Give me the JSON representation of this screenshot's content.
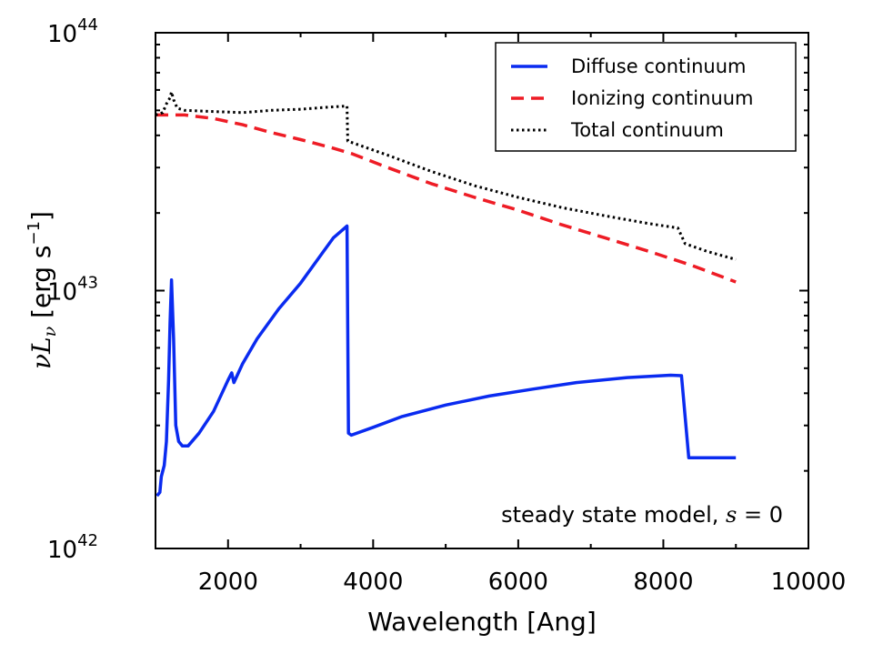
{
  "chart_data": {
    "type": "line",
    "xlabel": "Wavelength [Ang]",
    "ylabel": {
      "prefix": "νL",
      "subscript": "ν",
      "bracket_open": " [erg s",
      "sup": "−1",
      "bracket_close": "]"
    },
    "xlim": [
      1000,
      10000
    ],
    "ylim": [
      1e+42,
      1e+44
    ],
    "yscale": "log",
    "grid": false,
    "legend_position": "top-right",
    "xticks": [
      {
        "value": 2000,
        "label": "2000"
      },
      {
        "value": 4000,
        "label": "4000"
      },
      {
        "value": 6000,
        "label": "6000"
      },
      {
        "value": 8000,
        "label": "8000"
      },
      {
        "value": 10000,
        "label": "10000"
      }
    ],
    "yticks": [
      {
        "value": 1e+42,
        "base": "10",
        "exp": "42"
      },
      {
        "value": 1e+43,
        "base": "10",
        "exp": "43"
      },
      {
        "value": 1e+44,
        "base": "10",
        "exp": "44"
      }
    ],
    "series": [
      {
        "name": "Diffuse continuum",
        "color": "#0a2bf0",
        "style": "solid",
        "points": [
          [
            1020,
            1.6e+42
          ],
          [
            1060,
            1.65e+42
          ],
          [
            1080,
            1.9e+42
          ],
          [
            1120,
            2.1e+42
          ],
          [
            1150,
            2.6e+42
          ],
          [
            1180,
            4.5e+42
          ],
          [
            1200,
            7.5e+42
          ],
          [
            1220,
            1.1e+43
          ],
          [
            1250,
            6.5e+42
          ],
          [
            1280,
            3e+42
          ],
          [
            1320,
            2.6e+42
          ],
          [
            1370,
            2.5e+42
          ],
          [
            1450,
            2.5e+42
          ],
          [
            1600,
            2.8e+42
          ],
          [
            1800,
            3.4e+42
          ],
          [
            2000,
            4.5e+42
          ],
          [
            2050,
            4.8e+42
          ],
          [
            2080,
            4.4e+42
          ],
          [
            2200,
            5.2e+42
          ],
          [
            2400,
            6.5e+42
          ],
          [
            2700,
            8.5e+42
          ],
          [
            3000,
            1.07e+43
          ],
          [
            3300,
            1.4e+43
          ],
          [
            3450,
            1.6e+43
          ],
          [
            3640,
            1.78e+43
          ],
          [
            3660,
            2.8e+42
          ],
          [
            3700,
            2.75e+42
          ],
          [
            4000,
            2.95e+42
          ],
          [
            4400,
            3.25e+42
          ],
          [
            5000,
            3.6e+42
          ],
          [
            5600,
            3.9e+42
          ],
          [
            6200,
            4.15e+42
          ],
          [
            6800,
            4.4e+42
          ],
          [
            7500,
            4.6e+42
          ],
          [
            8100,
            4.7e+42
          ],
          [
            8250,
            4.68e+42
          ],
          [
            8350,
            2.25e+42
          ],
          [
            9000,
            2.25e+42
          ]
        ]
      },
      {
        "name": "Ionizing continuum",
        "color": "#ee1c25",
        "style": "dashed",
        "points": [
          [
            1000,
            4.8e+43
          ],
          [
            1400,
            4.8e+43
          ],
          [
            1800,
            4.65e+43
          ],
          [
            2200,
            4.4e+43
          ],
          [
            2600,
            4.1e+43
          ],
          [
            3000,
            3.85e+43
          ],
          [
            3400,
            3.6e+43
          ],
          [
            3700,
            3.4e+43
          ],
          [
            4200,
            3e+43
          ],
          [
            4800,
            2.6e+43
          ],
          [
            5400,
            2.3e+43
          ],
          [
            6000,
            2.05e+43
          ],
          [
            6600,
            1.8e+43
          ],
          [
            7200,
            1.6e+43
          ],
          [
            7800,
            1.42e+43
          ],
          [
            8400,
            1.25e+43
          ],
          [
            9000,
            1.08e+43
          ]
        ]
      },
      {
        "name": "Total continuum",
        "color": "#000000",
        "style": "dotted",
        "points": [
          [
            1000,
            4.8e+43
          ],
          [
            1100,
            4.9e+43
          ],
          [
            1150,
            5.3e+43
          ],
          [
            1200,
            5.6e+43
          ],
          [
            1220,
            5.9e+43
          ],
          [
            1250,
            5.5e+43
          ],
          [
            1300,
            5.1e+43
          ],
          [
            1400,
            5e+43
          ],
          [
            1800,
            4.95e+43
          ],
          [
            2200,
            4.9e+43
          ],
          [
            2600,
            5e+43
          ],
          [
            3000,
            5.05e+43
          ],
          [
            3400,
            5.15e+43
          ],
          [
            3640,
            5.2e+43
          ],
          [
            3650,
            3.8e+43
          ],
          [
            4200,
            3.35e+43
          ],
          [
            4800,
            2.9e+43
          ],
          [
            5400,
            2.55e+43
          ],
          [
            6000,
            2.3e+43
          ],
          [
            6600,
            2.1e+43
          ],
          [
            7200,
            1.95e+43
          ],
          [
            7800,
            1.82e+43
          ],
          [
            8200,
            1.75e+43
          ],
          [
            8300,
            1.52e+43
          ],
          [
            8600,
            1.42e+43
          ],
          [
            9000,
            1.32e+43
          ]
        ]
      }
    ],
    "annotation": {
      "text": "steady state model, ",
      "math_var": "s",
      "math_rel": " = ",
      "math_val": "0"
    }
  }
}
